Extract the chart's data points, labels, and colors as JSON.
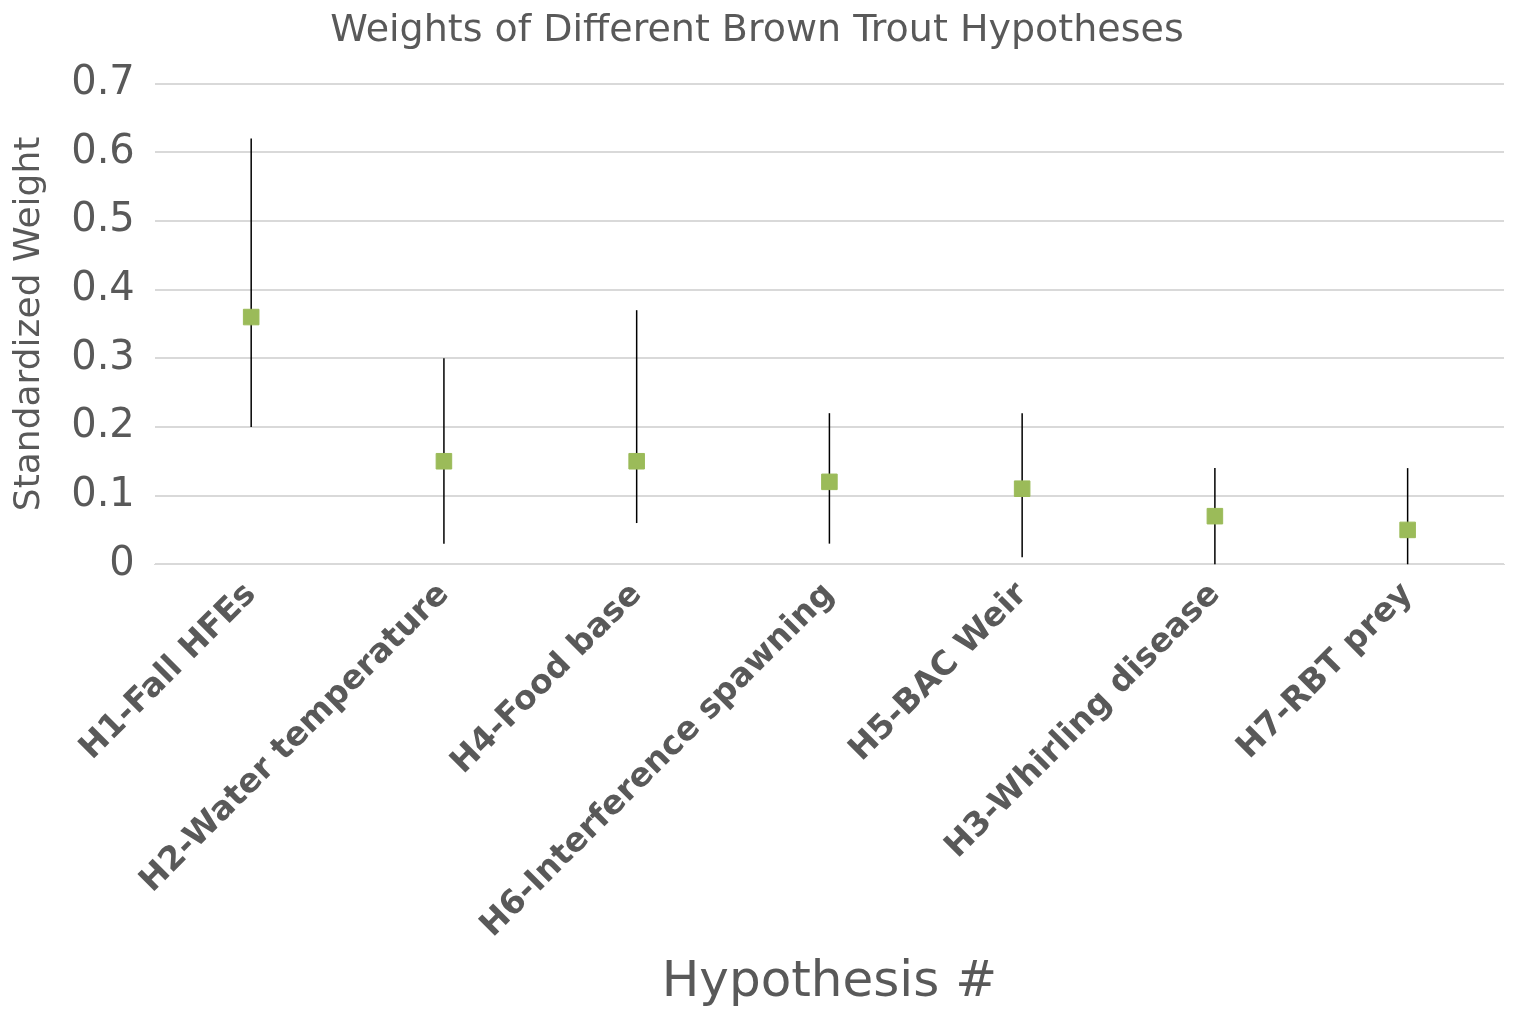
{
  "chart_data": {
    "type": "scatter",
    "title": "Weights of Different Brown Trout Hypotheses",
    "xlabel": "Hypothesis #",
    "ylabel": "Standardized Weight",
    "categories": [
      "H1-Fall HFEs",
      "H2-Water temperature",
      "H4-Food base",
      "H6-Interference spawning",
      "H5-BAC Weir",
      "H3-Whirling disease",
      "H7-RBT prey"
    ],
    "values": [
      0.36,
      0.15,
      0.15,
      0.12,
      0.11,
      0.07,
      0.05
    ],
    "errors": [
      [
        0.2,
        0.62
      ],
      [
        0.03,
        0.3
      ],
      [
        0.06,
        0.37
      ],
      [
        0.03,
        0.22
      ],
      [
        0.01,
        0.22
      ],
      [
        0,
        0.14
      ],
      [
        0,
        0.14
      ]
    ],
    "color": "#9bbb59",
    "marker": "square",
    "ylim": [
      0,
      0.7
    ],
    "yticks": [
      0,
      0.1,
      0.2,
      0.3,
      0.4,
      0.5,
      0.6,
      0.7
    ],
    "grid": "y",
    "legend": false
  }
}
